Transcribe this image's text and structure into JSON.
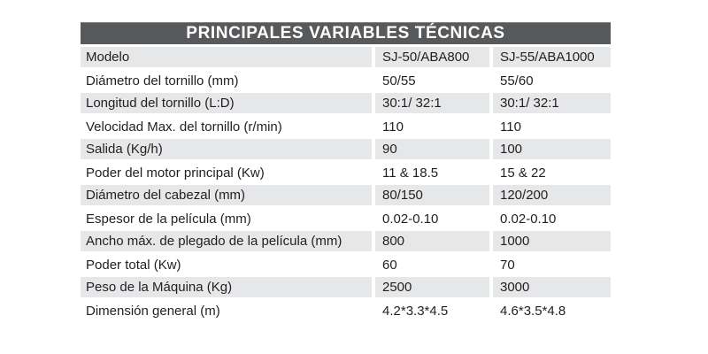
{
  "table": {
    "title": "PRINCIPALES VARIABLES TÉCNICAS",
    "rows": [
      {
        "label": "Modelo",
        "value_1": "SJ-50/ABA800",
        "value_2": "SJ-55/ABA1000"
      },
      {
        "label": "Diámetro del tornillo (mm)",
        "value_1": "50/55",
        "value_2": "55/60"
      },
      {
        "label": "Longitud del tornillo (L:D)",
        "value_1": "30:1/ 32:1",
        "value_2": "30:1/ 32:1"
      },
      {
        "label": "Velocidad Max. del tornillo (r/min)",
        "value_1": "110",
        "value_2": "110"
      },
      {
        "label": "Salida (Kg/h)",
        "value_1": "90",
        "value_2": "100"
      },
      {
        "label": "Poder del motor principal (Kw)",
        "value_1": "11 & 18.5",
        "value_2": "15 & 22"
      },
      {
        "label": "Diámetro del cabezal (mm)",
        "value_1": "80/150",
        "value_2": "120/200"
      },
      {
        "label": "Espesor de la película (mm)",
        "value_1": "0.02-0.10",
        "value_2": "0.02-0.10"
      },
      {
        "label": "Ancho máx. de plegado de la película (mm)",
        "value_1": "800",
        "value_2": "1000"
      },
      {
        "label": "Poder total (Kw)",
        "value_1": "60",
        "value_2": "70"
      },
      {
        "label": "Peso de la Máquina (Kg)",
        "value_1": "2500",
        "value_2": "3000"
      },
      {
        "label": "Dimensión general (m)",
        "value_1": "4.2*3.3*4.5",
        "value_2": "4.6*3.5*4.8"
      }
    ]
  },
  "colors": {
    "header_bg": "#58595b",
    "title_color": "#ffffff",
    "row_alt_bg": "#e6e7e8",
    "text_color": "#231f20",
    "page_bg": "#ffffff"
  }
}
